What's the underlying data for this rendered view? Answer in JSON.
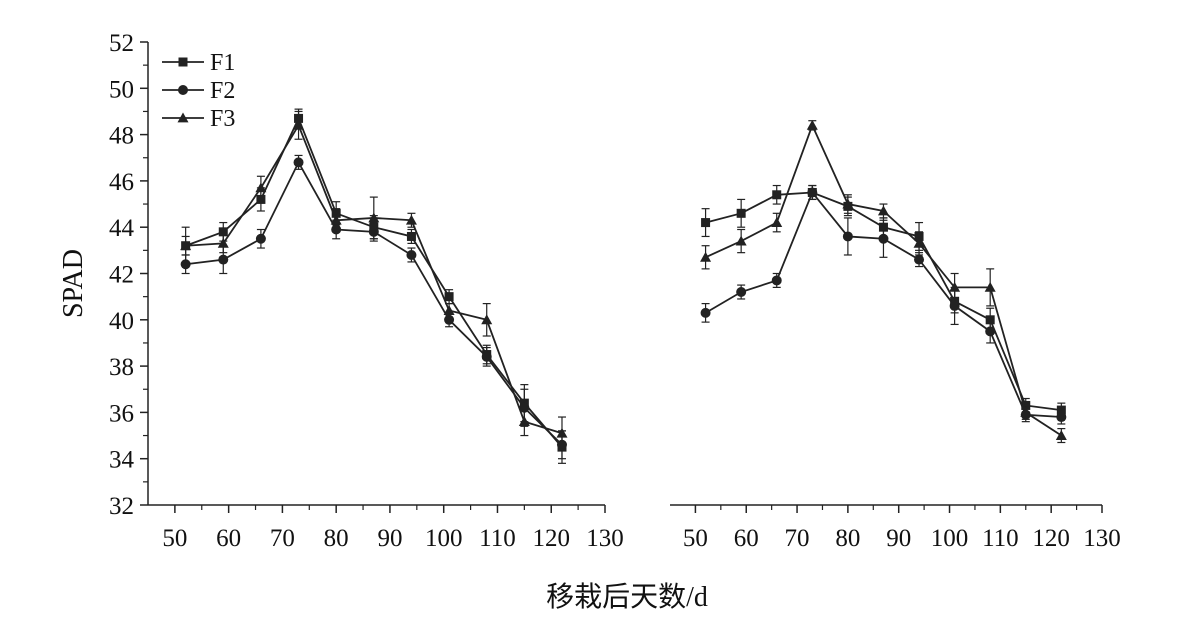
{
  "chart_data": [
    {
      "type": "line",
      "title": "",
      "xlabel": "",
      "ylabel": "SPAD",
      "xlim": [
        45,
        130
      ],
      "ylim": [
        32,
        52
      ],
      "xticks": [
        50,
        60,
        70,
        80,
        90,
        100,
        110,
        120,
        130
      ],
      "yticks": [
        32,
        34,
        36,
        38,
        40,
        42,
        44,
        46,
        48,
        50,
        52
      ],
      "legend_position": "top-left",
      "grid": false,
      "x": [
        52,
        59,
        66,
        73,
        80,
        87,
        94,
        101,
        108,
        115,
        122
      ],
      "series": [
        {
          "name": "F1",
          "marker": "square",
          "values": [
            43.2,
            43.8,
            45.2,
            48.7,
            44.6,
            44.0,
            43.6,
            41.0,
            38.5,
            36.4,
            34.5
          ],
          "errors": [
            0.8,
            0.4,
            0.5,
            0.4,
            0.5,
            0.5,
            0.3,
            0.3,
            0.4,
            0.8,
            0.7
          ]
        },
        {
          "name": "F2",
          "marker": "circle",
          "values": [
            42.4,
            42.6,
            43.5,
            46.8,
            43.9,
            43.8,
            42.8,
            40.0,
            38.4,
            36.2,
            34.6
          ],
          "errors": [
            0.4,
            0.6,
            0.4,
            0.3,
            0.4,
            0.4,
            0.3,
            0.3,
            0.4,
            0.8,
            0.6
          ]
        },
        {
          "name": "F3",
          "marker": "triangle",
          "values": [
            43.2,
            43.3,
            45.7,
            48.4,
            44.3,
            44.4,
            44.3,
            40.4,
            40.0,
            35.6,
            35.1
          ],
          "errors": [
            0.4,
            0.4,
            0.5,
            0.6,
            0.5,
            0.9,
            0.3,
            0.3,
            0.7,
            0.6,
            0.7
          ]
        }
      ]
    },
    {
      "type": "line",
      "title": "",
      "xlabel": "",
      "ylabel": "",
      "xlim": [
        45,
        130
      ],
      "ylim": [
        32,
        52
      ],
      "xticks": [
        50,
        60,
        70,
        80,
        90,
        100,
        110,
        120,
        130
      ],
      "grid": false,
      "x": [
        52,
        59,
        66,
        73,
        80,
        87,
        94,
        101,
        108,
        115,
        122
      ],
      "series": [
        {
          "name": "F1",
          "marker": "square",
          "values": [
            44.2,
            44.6,
            45.4,
            45.5,
            44.9,
            44.0,
            43.6,
            40.8,
            40.0,
            36.3,
            36.1
          ],
          "errors": [
            0.6,
            0.6,
            0.4,
            0.3,
            0.4,
            0.4,
            0.6,
            0.5,
            0.5,
            0.3,
            0.3
          ]
        },
        {
          "name": "F2",
          "marker": "circle",
          "values": [
            40.3,
            41.2,
            41.7,
            45.5,
            43.6,
            43.5,
            42.6,
            40.6,
            39.5,
            35.9,
            35.8
          ],
          "errors": [
            0.4,
            0.3,
            0.3,
            0.3,
            0.8,
            0.8,
            0.3,
            0.8,
            0.5,
            0.3,
            0.3
          ]
        },
        {
          "name": "F3",
          "marker": "triangle",
          "values": [
            42.7,
            43.4,
            44.2,
            48.4,
            45.0,
            44.7,
            43.3,
            41.4,
            41.4,
            36.0,
            35.0
          ],
          "errors": [
            0.5,
            0.5,
            0.4,
            0.2,
            0.4,
            0.3,
            0.5,
            0.6,
            0.8,
            0.3,
            0.3
          ]
        }
      ]
    }
  ],
  "shared_xlabel": "移栽后天数/d"
}
